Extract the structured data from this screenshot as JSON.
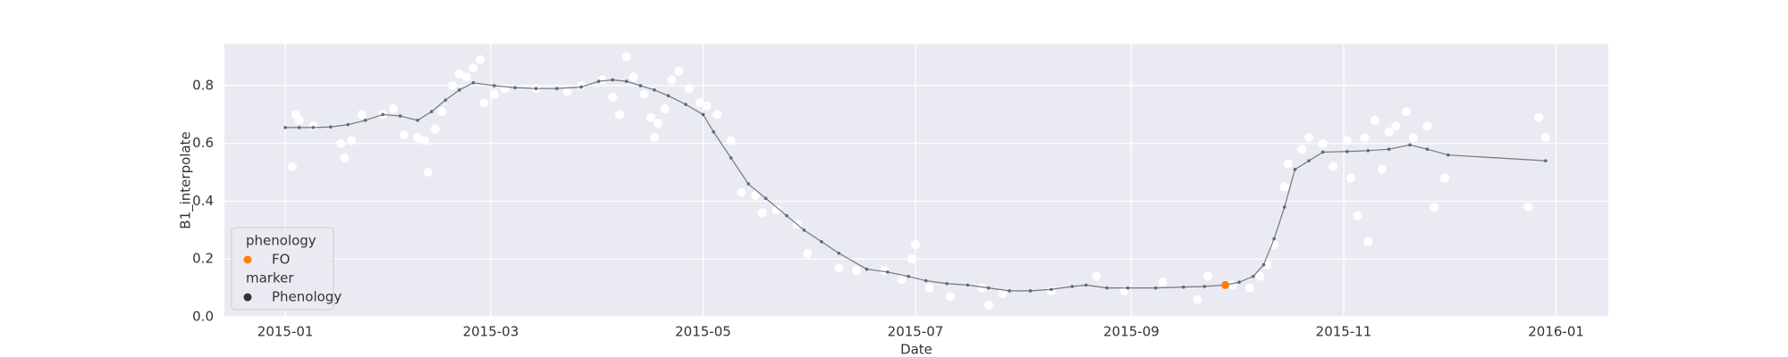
{
  "chart_data": {
    "type": "line",
    "x_label": "Date",
    "y_label": "B1_interpolate",
    "xlim": [
      -17.5,
      380
    ],
    "ylim": [
      0,
      0.945
    ],
    "xticks": [
      {
        "value": 0,
        "label": "2015-01"
      },
      {
        "value": 59,
        "label": "2015-03"
      },
      {
        "value": 120,
        "label": "2015-05"
      },
      {
        "value": 181,
        "label": "2015-07"
      },
      {
        "value": 243,
        "label": "2015-09"
      },
      {
        "value": 304,
        "label": "2015-11"
      },
      {
        "value": 365,
        "label": "2016-01"
      }
    ],
    "yticks": [
      {
        "value": 0,
        "label": "0.0"
      },
      0.2,
      0.4,
      0.6,
      0.8
    ],
    "grid": true,
    "x": [
      0,
      4,
      8,
      13,
      18,
      23,
      28,
      33,
      38,
      42,
      46,
      50,
      54,
      60,
      66,
      72,
      78,
      85,
      90,
      94,
      98,
      102,
      106,
      110,
      115,
      120,
      123,
      128,
      133,
      138,
      144,
      149,
      154,
      159,
      167,
      173,
      179,
      184,
      190,
      196,
      202,
      208,
      214,
      220,
      226,
      230,
      236,
      242,
      250,
      258,
      264,
      270,
      274,
      278,
      281,
      284,
      287,
      290,
      294,
      298,
      305,
      311,
      317,
      323,
      328,
      334,
      362
    ],
    "series": [
      {
        "color": "#4c6e8a",
        "values": [
          0.655,
          0.655,
          0.655,
          0.657,
          0.665,
          0.68,
          0.7,
          0.695,
          0.68,
          0.71,
          0.75,
          0.785,
          0.81,
          0.8,
          0.793,
          0.79,
          0.79,
          0.795,
          0.815,
          0.82,
          0.815,
          0.8,
          0.785,
          0.765,
          0.735,
          0.7,
          0.64,
          0.55,
          0.46,
          0.41,
          0.35,
          0.3,
          0.26,
          0.22,
          0.165,
          0.155,
          0.14,
          0.125,
          0.115,
          0.11,
          0.1,
          0.09,
          0.09,
          0.095,
          0.105,
          0.11,
          0.1,
          0.1,
          0.1,
          0.103,
          0.105,
          0.11,
          0.12,
          0.14,
          0.18,
          0.27,
          0.38,
          0.51,
          0.54,
          0.57,
          0.572,
          0.575,
          0.58,
          0.595,
          0.58,
          0.56,
          0.54
        ]
      }
    ],
    "scatter": {
      "color": "#ffffff",
      "x": [
        2,
        3,
        4,
        8,
        16,
        17,
        19,
        22,
        28,
        31,
        34,
        38,
        40,
        41,
        43,
        45,
        48,
        50,
        52,
        54,
        56,
        57,
        60,
        63,
        72,
        81,
        85,
        91,
        94,
        96,
        98,
        100,
        103,
        105,
        106,
        107,
        109,
        111,
        113,
        116,
        119,
        121,
        124,
        128,
        131,
        135,
        137,
        141,
        147,
        150,
        159,
        164,
        172,
        177,
        180,
        181,
        185,
        191,
        200,
        202,
        206,
        220,
        233,
        241,
        252,
        262,
        265,
        272,
        277,
        280,
        282,
        284,
        287,
        288,
        292,
        294,
        298,
        301,
        305,
        306,
        308,
        310,
        311,
        313,
        315,
        317,
        319,
        322,
        324,
        328,
        330,
        333,
        357,
        360,
        362
      ],
      "values": [
        0.52,
        0.7,
        0.68,
        0.66,
        0.6,
        0.55,
        0.61,
        0.7,
        0.7,
        0.72,
        0.63,
        0.62,
        0.61,
        0.5,
        0.65,
        0.71,
        0.8,
        0.84,
        0.83,
        0.86,
        0.89,
        0.74,
        0.77,
        0.79,
        0.79,
        0.78,
        0.8,
        0.82,
        0.76,
        0.7,
        0.9,
        0.83,
        0.77,
        0.69,
        0.62,
        0.67,
        0.72,
        0.82,
        0.85,
        0.79,
        0.74,
        0.73,
        0.7,
        0.61,
        0.43,
        0.42,
        0.36,
        0.37,
        0.32,
        0.22,
        0.17,
        0.16,
        0.16,
        0.13,
        0.2,
        0.25,
        0.1,
        0.07,
        0.1,
        0.04,
        0.08,
        0.09,
        0.14,
        0.09,
        0.12,
        0.06,
        0.14,
        0.11,
        0.1,
        0.14,
        0.18,
        0.25,
        0.45,
        0.53,
        0.58,
        0.62,
        0.6,
        0.52,
        0.61,
        0.48,
        0.35,
        0.62,
        0.26,
        0.68,
        0.51,
        0.64,
        0.66,
        0.71,
        0.62,
        0.66,
        0.38,
        0.48,
        0.38,
        0.69,
        0.62
      ]
    },
    "event": {
      "x": 270,
      "value": 0.11,
      "color": "#ff7f0e"
    },
    "legend": {
      "corner": "lower left",
      "items": [
        {
          "title": "phenology"
        },
        {
          "label": "FO",
          "color": "#ff7f0e"
        },
        {
          "title": "marker"
        },
        {
          "label": "Phenology",
          "color": "#333333"
        }
      ]
    }
  }
}
